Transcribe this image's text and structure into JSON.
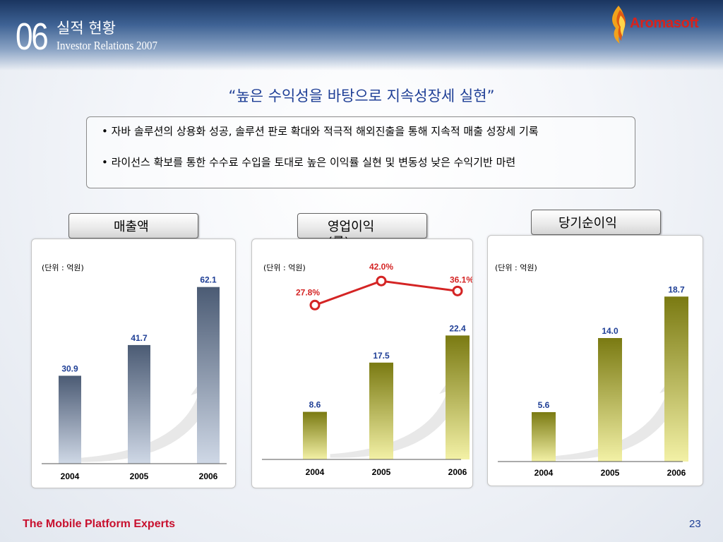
{
  "header": {
    "section_number": "06",
    "section_title": "실적 현황",
    "section_subtitle": "Investor Relations 2007",
    "logo_text": "Aromasoft"
  },
  "headline": "“높은 수익성을 바탕으로 지속성장세 실현”",
  "bullets": [
    "• 자바 솔루션의 상용화 성공, 솔루션 판로 확대와 적극적 해외진출을 통해 지속적 매출 성장세 기록",
    "• 라이선스 확보를 통한 수수료 수입을 토대로 높은 이익률 실현 및 변동성 낮은 수익기반 마련"
  ],
  "colors": {
    "revenue_bar": "#5a6c86",
    "profit_bar": "#c9c23a",
    "margin_line": "#d42424",
    "value_label": "#1f3f96",
    "footer": "#c8102e"
  },
  "chart_data": [
    {
      "type": "bar",
      "title": "매출액",
      "unit_label": "(단위 : 억원)",
      "categories": [
        "2004",
        "2005",
        "2006"
      ],
      "values": [
        30.9,
        41.7,
        62.1
      ],
      "labels": [
        "30.9",
        "41.7",
        "62.1"
      ],
      "ylim": [
        0,
        65
      ]
    },
    {
      "type": "bar",
      "title": "영업이익(률)",
      "unit_label": "(단위 : 억원)",
      "categories": [
        "2004",
        "2005",
        "2006"
      ],
      "values": [
        8.6,
        17.5,
        22.4
      ],
      "labels": [
        "8.6",
        "17.5",
        "22.4"
      ],
      "ylim": [
        0,
        25
      ],
      "line": {
        "type": "line",
        "values": [
          27.8,
          42.0,
          36.1
        ],
        "labels": [
          "27.8%",
          "42.0%",
          "36.1%"
        ]
      }
    },
    {
      "type": "bar",
      "title": "당기순이익",
      "unit_label": "(단위 : 억원)",
      "categories": [
        "2004",
        "2005",
        "2006"
      ],
      "values": [
        5.6,
        14.0,
        18.7
      ],
      "labels": [
        "5.6",
        "14.0",
        "18.7"
      ],
      "ylim": [
        0,
        20
      ]
    }
  ],
  "footer": {
    "tagline": "The Mobile Platform Experts",
    "page_number": "23"
  }
}
